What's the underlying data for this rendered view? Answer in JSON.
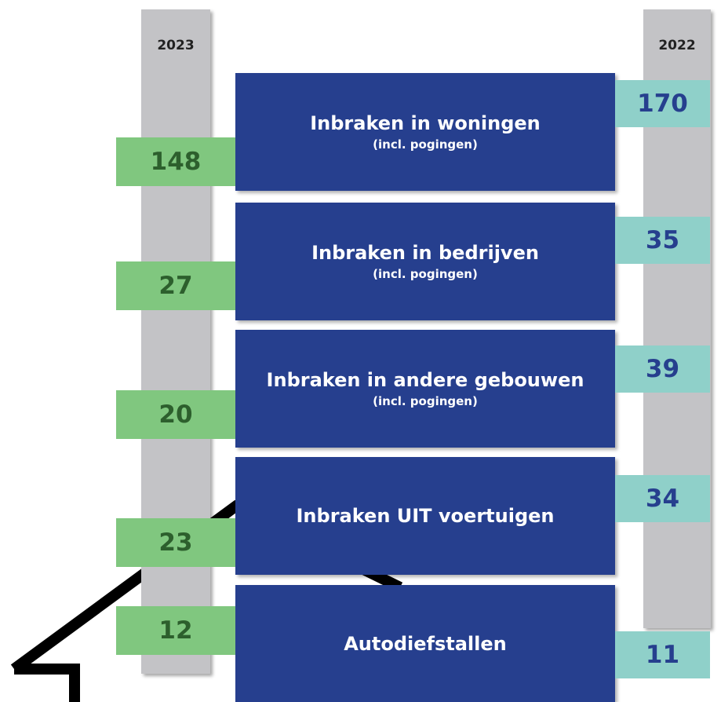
{
  "columns": [
    "2023",
    "2022"
  ],
  "rows": [
    {
      "title": "Inbraken in woningen",
      "subtitle": "(incl. pogingen)",
      "value_2023": 148,
      "value_2022": 170
    },
    {
      "title": "Inbraken in bedrijven",
      "subtitle": "(incl. pogingen)",
      "value_2023": 27,
      "value_2022": 35
    },
    {
      "title": "Inbraken in andere gebouwen",
      "subtitle": "(incl. pogingen)",
      "value_2023": 20,
      "value_2022": 39
    },
    {
      "title": "Inbraken UIT voertuigen",
      "value_2023": 23,
      "value_2022": 34
    },
    {
      "title": "Autodiefstallen",
      "value_2023": 12,
      "value_2022": 11
    }
  ]
}
